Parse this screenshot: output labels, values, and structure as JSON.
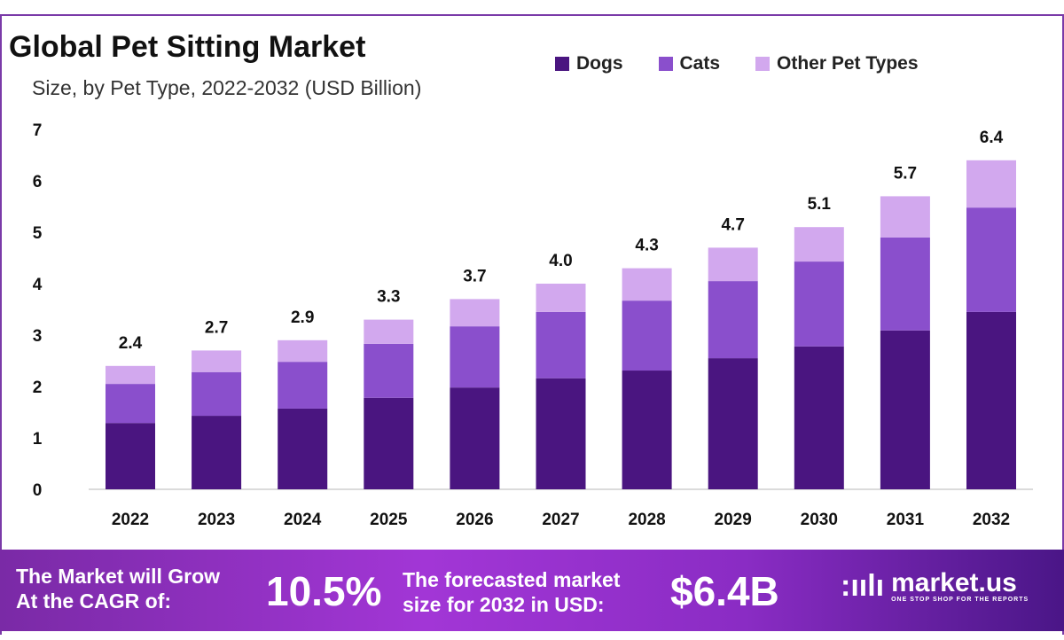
{
  "chart_data": {
    "type": "bar",
    "stacked": true,
    "title": "Global Pet Sitting Market",
    "subtitle": "Size, by Pet Type, 2022-2032 (USD Billion)",
    "categories": [
      "2022",
      "2023",
      "2024",
      "2025",
      "2026",
      "2027",
      "2028",
      "2029",
      "2030",
      "2031",
      "2032"
    ],
    "series": [
      {
        "name": "Dogs",
        "color": "#4a1580",
        "values": [
          1.29,
          1.43,
          1.57,
          1.78,
          1.98,
          2.16,
          2.31,
          2.55,
          2.78,
          3.09,
          3.45
        ]
      },
      {
        "name": "Cats",
        "color": "#8a4fcc",
        "values": [
          0.76,
          0.85,
          0.91,
          1.05,
          1.19,
          1.29,
          1.36,
          1.5,
          1.65,
          1.81,
          2.03
        ]
      },
      {
        "name": "Other Pet Types",
        "color": "#d2a8ee",
        "values": [
          0.35,
          0.42,
          0.42,
          0.47,
          0.53,
          0.55,
          0.63,
          0.65,
          0.67,
          0.8,
          0.92
        ]
      }
    ],
    "totals": [
      "2.4",
      "2.7",
      "2.9",
      "3.3",
      "3.7",
      "4.0",
      "4.3",
      "4.7",
      "5.1",
      "5.7",
      "6.4"
    ],
    "yticks": [
      "0",
      "1",
      "2",
      "3",
      "4",
      "5",
      "6",
      "7"
    ],
    "ylim": [
      0,
      7
    ],
    "grid": false,
    "legend": "top-right"
  },
  "footer": {
    "cagr_label_1": "The Market will Grow",
    "cagr_label_2": "At the CAGR of:",
    "cagr_value": "10.5%",
    "forecast_label_1": "The forecasted market",
    "forecast_label_2": "size for 2032 in USD:",
    "forecast_value": "$6.4B",
    "brand": "market.us",
    "tagline": "ONE STOP SHOP FOR THE REPORTS"
  }
}
